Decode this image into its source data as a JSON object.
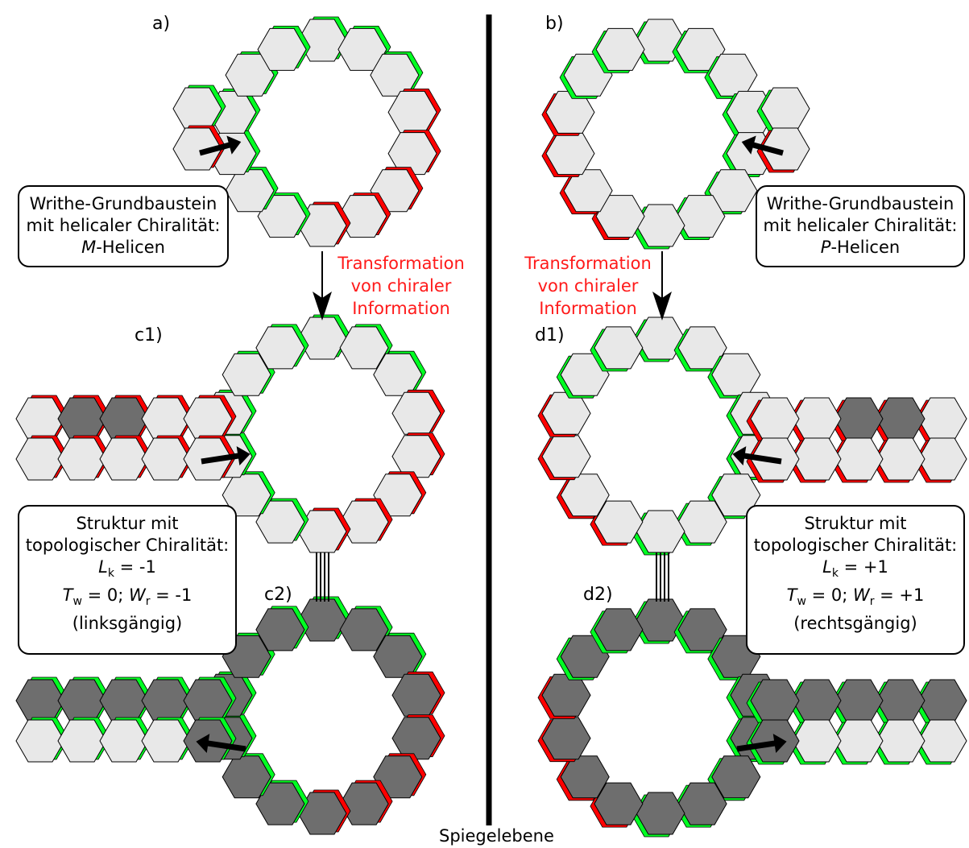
{
  "labels": {
    "a": "a)",
    "b": "b)",
    "c1": "c1)",
    "c2": "c2)",
    "d1": "d1)",
    "d2": "d2)"
  },
  "box_a": {
    "line1": "Writhe-Grundbaustein",
    "line2": "mit helicaler Chiralität:",
    "sym": "M",
    "rest": "-Helicen"
  },
  "box_b": {
    "line1": "Writhe-Grundbaustein",
    "line2": "mit helicaler Chiralität:",
    "sym": "P",
    "rest": "-Helicen"
  },
  "transform_text": {
    "line1": "Transformation",
    "line2": "von chiraler",
    "line3": "Information"
  },
  "box_c": {
    "line1": "Struktur mit",
    "line2": "topologischer Chiralität:",
    "lk_sym": "L",
    "lk_sub": "k",
    "lk_val": " = -1",
    "tw_sym": "T",
    "tw_sub": "w",
    "tw_val": " = 0; ",
    "wr_sym": "W",
    "wr_sub": "r",
    "wr_val": " = -1",
    "line5": "(linksgängig)"
  },
  "box_d": {
    "line1": "Struktur mit",
    "line2": "topologischer Chiralität:",
    "lk_sym": "L",
    "lk_sub": "k",
    "lk_val": " = +1",
    "tw_sym": "T",
    "tw_sub": "w",
    "tw_val": " = 0; ",
    "wr_sym": "W",
    "wr_sub": "r",
    "wr_val": " = +1",
    "line5": "(rechtsgängig)"
  },
  "mirror_plane": "Spiegelebene",
  "colors": {
    "hex_light": "#e8e8e8",
    "hex_dark": "#6e6e6e",
    "edge_red": "#ff0000",
    "edge_green": "#00ff22",
    "transform_text": "#ff1a1a",
    "mirror_line": "#000000"
  }
}
